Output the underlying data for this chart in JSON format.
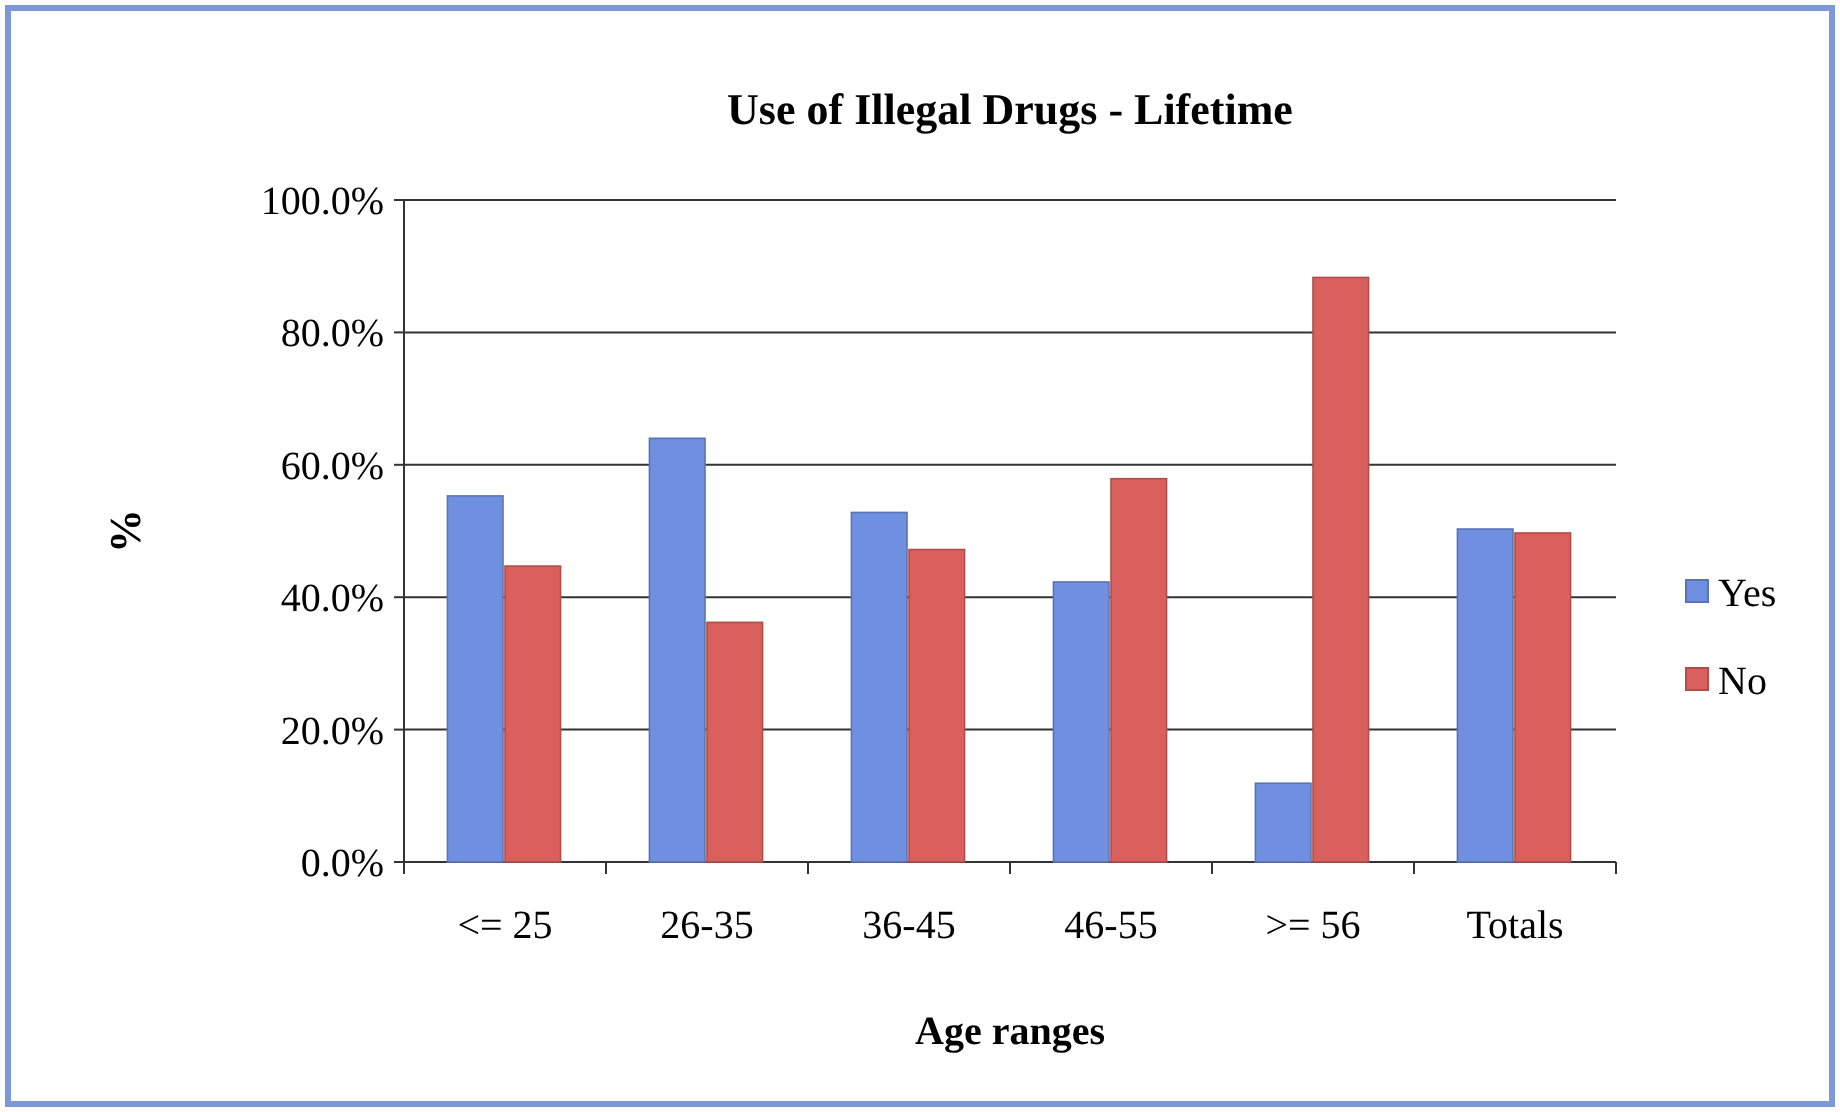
{
  "chart_data": {
    "type": "bar",
    "title": "Use of Illegal Drugs - Lifetime",
    "xlabel": "Age ranges",
    "ylabel": "%",
    "categories": [
      "<= 25",
      "26-35",
      "36-45",
      "46-55",
      ">= 56",
      "Totals"
    ],
    "series": [
      {
        "name": "Yes",
        "color": "#6f8fe0",
        "values": [
          55.3,
          64.0,
          52.8,
          42.3,
          11.9,
          50.3
        ]
      },
      {
        "name": "No",
        "color": "#d9605c",
        "values": [
          44.7,
          36.2,
          47.2,
          57.9,
          88.3,
          49.7
        ]
      }
    ],
    "ylim": [
      0,
      100
    ],
    "yticks": [
      {
        "value": 0,
        "label": "0.0%"
      },
      {
        "value": 20,
        "label": "20.0%"
      },
      {
        "value": 40,
        "label": "40.0%"
      },
      {
        "value": 60,
        "label": "60.0%"
      },
      {
        "value": 80,
        "label": "80.0%"
      },
      {
        "value": 100,
        "label": "100.0%"
      }
    ],
    "grid": "y",
    "legend": "right"
  }
}
